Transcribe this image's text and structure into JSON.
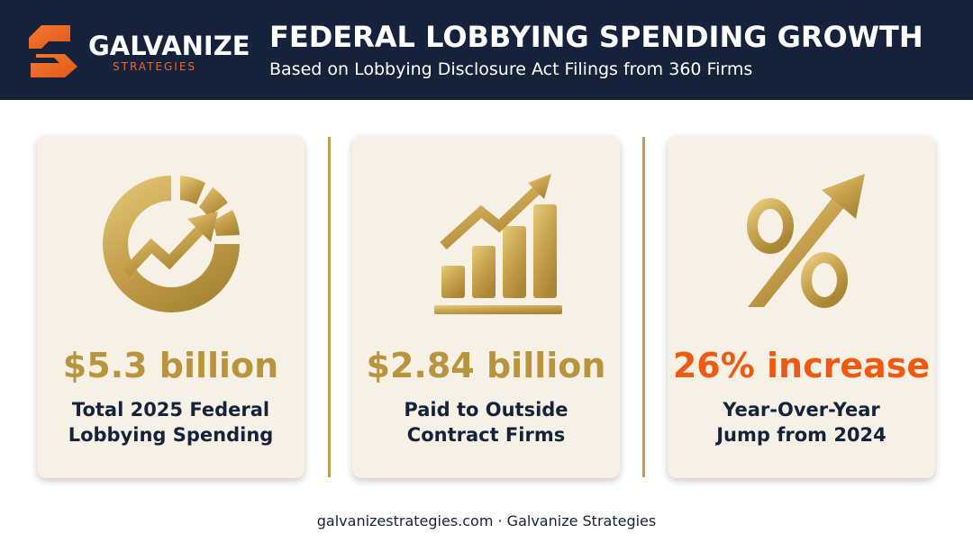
{
  "brand": {
    "name": "GALVANIZE",
    "tagline": "STRATEGIES",
    "accent_color": "#ef6a26",
    "header_color": "#15223c",
    "gold_color": "#c4a24b"
  },
  "header": {
    "title": "FEDERAL LOBBYING SPENDING GROWTH",
    "subtitle": "Based on Lobbying Disclosure Act Filings from 360 Firms"
  },
  "cards": [
    {
      "icon": "donut-growth-arrow-icon",
      "value": "$5.3 billion",
      "label_line1": "Total 2025 Federal",
      "label_line2": "Lobbying Spending"
    },
    {
      "icon": "bar-chart-trend-icon",
      "value": "$2.84 billion",
      "label_line1": "Paid to Outside",
      "label_line2": "Contract Firms"
    },
    {
      "icon": "percent-up-arrow-icon",
      "value": "26% increase",
      "value_color": "#ee5a12",
      "label_line1": "Year-Over-Year",
      "label_line2": "Jump from 2024"
    }
  ],
  "footer": {
    "text": "galvanizestrategies.com · Galvanize Strategies"
  }
}
